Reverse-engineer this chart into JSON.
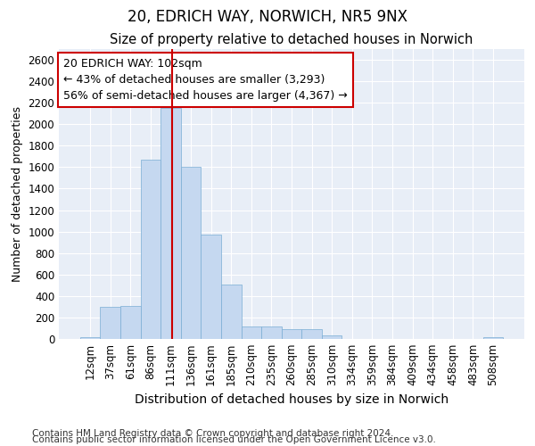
{
  "title": "20, EDRICH WAY, NORWICH, NR5 9NX",
  "subtitle": "Size of property relative to detached houses in Norwich",
  "xlabel": "Distribution of detached houses by size in Norwich",
  "ylabel": "Number of detached properties",
  "categories": [
    "12sqm",
    "37sqm",
    "61sqm",
    "86sqm",
    "111sqm",
    "136sqm",
    "161sqm",
    "185sqm",
    "210sqm",
    "235sqm",
    "260sqm",
    "285sqm",
    "310sqm",
    "334sqm",
    "359sqm",
    "384sqm",
    "409sqm",
    "434sqm",
    "458sqm",
    "483sqm",
    "508sqm"
  ],
  "values": [
    20,
    300,
    305,
    1670,
    2150,
    1600,
    970,
    510,
    115,
    120,
    95,
    90,
    35,
    0,
    0,
    0,
    0,
    0,
    0,
    0,
    20
  ],
  "bar_color": "#c5d8f0",
  "bar_edge_color": "#7aadd4",
  "fig_background": "#ffffff",
  "axes_background": "#e8eef7",
  "grid_color": "#ffffff",
  "annotation_text": "20 EDRICH WAY: 102sqm\n← 43% of detached houses are smaller (3,293)\n56% of semi-detached houses are larger (4,367) →",
  "vline_color": "#cc0000",
  "vline_pos": 4.08,
  "footnote1": "Contains HM Land Registry data © Crown copyright and database right 2024.",
  "footnote2": "Contains public sector information licensed under the Open Government Licence v3.0.",
  "ylim": [
    0,
    2700
  ],
  "yticks": [
    0,
    200,
    400,
    600,
    800,
    1000,
    1200,
    1400,
    1600,
    1800,
    2000,
    2200,
    2400,
    2600
  ],
  "title_fontsize": 12,
  "subtitle_fontsize": 10.5,
  "xlabel_fontsize": 10,
  "ylabel_fontsize": 9,
  "tick_fontsize": 8.5,
  "annot_fontsize": 9,
  "footnote_fontsize": 7.5
}
